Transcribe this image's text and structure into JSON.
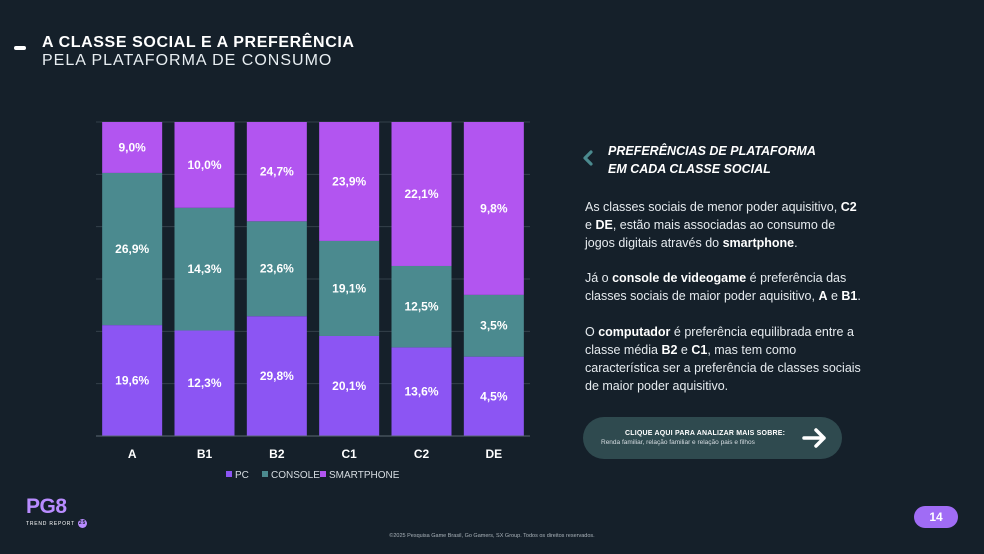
{
  "header": {
    "title": "A CLASSE SOCIAL E A PREFERÊNCIA",
    "subtitle": "PELA PLATAFORMA DE CONSUMO"
  },
  "colors": {
    "pc": "#8c55f3",
    "console": "#4b8a8f",
    "smartphone": "#b255f0",
    "background": "#15202a"
  },
  "chart_data": {
    "type": "bar",
    "stacked": true,
    "categories": [
      "A",
      "B1",
      "B2",
      "C1",
      "C2",
      "DE"
    ],
    "series": [
      {
        "name": "PC",
        "values": [
          19.6,
          12.3,
          29.8,
          20.1,
          13.6,
          4.5
        ],
        "labels": [
          "19,6%",
          "12,3%",
          "29,8%",
          "20,1%",
          "13,6%",
          "4,5%"
        ]
      },
      {
        "name": "CONSOLE",
        "values": [
          26.9,
          14.3,
          23.6,
          19.1,
          12.5,
          3.5
        ],
        "labels": [
          "26,9%",
          "14,3%",
          "23,6%",
          "19,1%",
          "12,5%",
          "3,5%"
        ]
      },
      {
        "name": "SMARTPHONE",
        "values": [
          9.0,
          10.0,
          24.7,
          23.9,
          22.1,
          9.8
        ],
        "labels": [
          "9,0%",
          "10,0%",
          "24,7%",
          "23,9%",
          "22,1%",
          "9,8%"
        ]
      }
    ],
    "normalized": true,
    "legend_position": "bottom",
    "grid": true
  },
  "side": {
    "title_line1": "PREFERÊNCIAS DE PLATAFORMA",
    "title_line2": "EM CADA CLASSE SOCIAL",
    "p1": {
      "l1a": "As classes sociais de menor poder aquisitivo, ",
      "l1b": "C2",
      "l2a": "e ",
      "l2b": "DE",
      "l2c": ", estão mais associadas ao consumo de",
      "l3a": "jogos digitais através do ",
      "l3b": "smartphone",
      "l3c": "."
    },
    "p2": {
      "l1a": "Já o ",
      "l1b": "console de videogame",
      "l1c": " é preferência das",
      "l2a": "classes sociais de maior poder aquisitivo, ",
      "l2b": "A",
      "l2c": " e ",
      "l2d": "B1",
      "l2e": "."
    },
    "p3": {
      "l1a": "O ",
      "l1b": "computador",
      "l1c": " é preferência equilibrada entre a",
      "l2a": "classe média ",
      "l2b": "B2",
      "l2c": " e ",
      "l2d": "C1",
      "l2e": ", mas tem como",
      "l3": "característica ser a preferência de classes sociais",
      "l4": "de maior poder aquisitivo."
    }
  },
  "cta": {
    "line1": "CLIQUE AQUI PARA ANALIZAR MAIS SOBRE:",
    "line2": "Renda familiar, relação familiar e relação pais e filhos"
  },
  "logo": {
    "name": "PG8",
    "sub": "TREND REPORT",
    "year": "25"
  },
  "page_number": "14",
  "footer": "©2025 Pesquisa Game Brasil, Go Gamers, SX Group. Todos os direitos reservados."
}
